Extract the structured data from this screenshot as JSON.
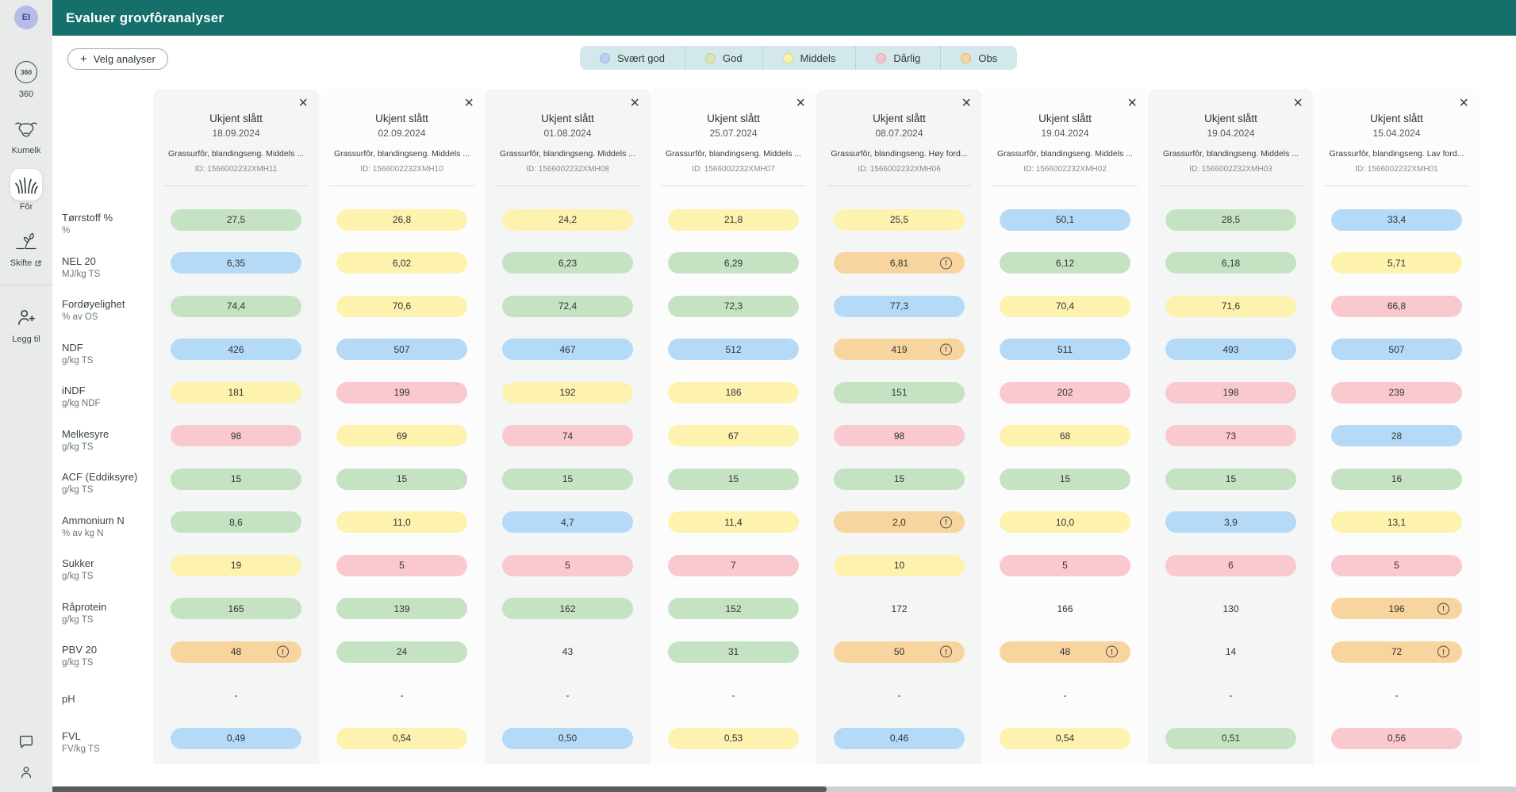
{
  "app": {
    "title": "Evaluer grovfôranalyser"
  },
  "sidebar": {
    "avatar_initials": "EI",
    "items": [
      {
        "label": "360",
        "icon": "360-badge-icon"
      },
      {
        "label": "Kumelk",
        "icon": "cow-icon"
      },
      {
        "label": "Fôr",
        "icon": "grass-icon",
        "active": true
      },
      {
        "label": "Skifte",
        "icon": "sprout-icon",
        "external": true
      },
      {
        "label": "Legg til",
        "icon": "person-plus-icon"
      }
    ]
  },
  "toolbar": {
    "select_analyses_label": "Velg analyser"
  },
  "legend": {
    "items": [
      {
        "label": "Svært god",
        "color": "#bccff0",
        "border": "#9fb6e2"
      },
      {
        "label": "God",
        "color": "#d9e6b2",
        "border": "#c0d28e"
      },
      {
        "label": "Middels",
        "color": "#f9f0ad",
        "border": "#e6d87c"
      },
      {
        "label": "Dårlig",
        "color": "#f6c4cf",
        "border": "#eba4b4"
      },
      {
        "label": "Obs",
        "color": "#f7d3a0",
        "border": "#e8b877"
      }
    ]
  },
  "status_colors": {
    "blue": "#b4daf8",
    "green": "#c5e3c3",
    "yellow": "#fdf3ae",
    "pink": "#fac8cf",
    "orange": "#f8d59e"
  },
  "table": {
    "rows": [
      {
        "name": "Tørrstoff %",
        "unit": "%"
      },
      {
        "name": "NEL 20",
        "unit": "MJ/kg TS"
      },
      {
        "name": "Fordøyelighet",
        "unit": "% av OS"
      },
      {
        "name": "NDF",
        "unit": "g/kg TS"
      },
      {
        "name": "iNDF",
        "unit": "g/kg NDF"
      },
      {
        "name": "Melkesyre",
        "unit": "g/kg TS"
      },
      {
        "name": "ACF (Eddiksyre)",
        "unit": "g/kg TS"
      },
      {
        "name": "Ammonium N",
        "unit": "% av kg N"
      },
      {
        "name": "Sukker",
        "unit": "g/kg TS"
      },
      {
        "name": "Råprotein",
        "unit": "g/kg TS"
      },
      {
        "name": "PBV 20",
        "unit": "g/kg TS"
      },
      {
        "name": "pH",
        "unit": ""
      },
      {
        "name": "FVL",
        "unit": "FV/kg TS"
      }
    ],
    "columns": [
      {
        "title": "Ukjent slått",
        "date": "18.09.2024",
        "description": "Grassurfôr, blandingseng. Middels ...",
        "id": "ID: 1566002232XMH11",
        "values": [
          {
            "v": "27,5",
            "c": "green"
          },
          {
            "v": "6,35",
            "c": "blue"
          },
          {
            "v": "74,4",
            "c": "green"
          },
          {
            "v": "426",
            "c": "blue"
          },
          {
            "v": "181",
            "c": "yellow"
          },
          {
            "v": "98",
            "c": "pink"
          },
          {
            "v": "15",
            "c": "green"
          },
          {
            "v": "8,6",
            "c": "green"
          },
          {
            "v": "19",
            "c": "yellow"
          },
          {
            "v": "165",
            "c": "green"
          },
          {
            "v": "48",
            "c": "orange",
            "warn": true
          },
          {
            "v": "-",
            "c": "none"
          },
          {
            "v": "0,49",
            "c": "blue"
          }
        ]
      },
      {
        "title": "Ukjent slått",
        "date": "02.09.2024",
        "description": "Grassurfôr, blandingseng. Middels ...",
        "id": "ID: 1566002232XMH10",
        "values": [
          {
            "v": "26,8",
            "c": "yellow"
          },
          {
            "v": "6,02",
            "c": "yellow"
          },
          {
            "v": "70,6",
            "c": "yellow"
          },
          {
            "v": "507",
            "c": "blue"
          },
          {
            "v": "199",
            "c": "pink"
          },
          {
            "v": "69",
            "c": "yellow"
          },
          {
            "v": "15",
            "c": "green"
          },
          {
            "v": "11,0",
            "c": "yellow"
          },
          {
            "v": "5",
            "c": "pink"
          },
          {
            "v": "139",
            "c": "green"
          },
          {
            "v": "24",
            "c": "green"
          },
          {
            "v": "-",
            "c": "none"
          },
          {
            "v": "0,54",
            "c": "yellow"
          }
        ]
      },
      {
        "title": "Ukjent slått",
        "date": "01.08.2024",
        "description": "Grassurfôr, blandingseng. Middels ...",
        "id": "ID: 1566002232XMH08",
        "values": [
          {
            "v": "24,2",
            "c": "yellow"
          },
          {
            "v": "6,23",
            "c": "green"
          },
          {
            "v": "72,4",
            "c": "green"
          },
          {
            "v": "467",
            "c": "blue"
          },
          {
            "v": "192",
            "c": "yellow"
          },
          {
            "v": "74",
            "c": "pink"
          },
          {
            "v": "15",
            "c": "green"
          },
          {
            "v": "4,7",
            "c": "blue"
          },
          {
            "v": "5",
            "c": "pink"
          },
          {
            "v": "162",
            "c": "green"
          },
          {
            "v": "43",
            "c": "none"
          },
          {
            "v": "-",
            "c": "none"
          },
          {
            "v": "0,50",
            "c": "blue"
          }
        ]
      },
      {
        "title": "Ukjent slått",
        "date": "25.07.2024",
        "description": "Grassurfôr, blandingseng. Middels ...",
        "id": "ID: 1566002232XMH07",
        "values": [
          {
            "v": "21,8",
            "c": "yellow"
          },
          {
            "v": "6,29",
            "c": "green"
          },
          {
            "v": "72,3",
            "c": "green"
          },
          {
            "v": "512",
            "c": "blue"
          },
          {
            "v": "186",
            "c": "yellow"
          },
          {
            "v": "67",
            "c": "yellow"
          },
          {
            "v": "15",
            "c": "green"
          },
          {
            "v": "11,4",
            "c": "yellow"
          },
          {
            "v": "7",
            "c": "pink"
          },
          {
            "v": "152",
            "c": "green"
          },
          {
            "v": "31",
            "c": "green"
          },
          {
            "v": "-",
            "c": "none"
          },
          {
            "v": "0,53",
            "c": "yellow"
          }
        ]
      },
      {
        "title": "Ukjent slått",
        "date": "08.07.2024",
        "description": "Grassurfôr, blandingseng. Høy ford...",
        "id": "ID: 1566002232XMH06",
        "values": [
          {
            "v": "25,5",
            "c": "yellow"
          },
          {
            "v": "6,81",
            "c": "orange",
            "warn": true
          },
          {
            "v": "77,3",
            "c": "blue"
          },
          {
            "v": "419",
            "c": "orange",
            "warn": true
          },
          {
            "v": "151",
            "c": "green"
          },
          {
            "v": "98",
            "c": "pink"
          },
          {
            "v": "15",
            "c": "green"
          },
          {
            "v": "2,0",
            "c": "orange",
            "warn": true
          },
          {
            "v": "10",
            "c": "yellow"
          },
          {
            "v": "172",
            "c": "none"
          },
          {
            "v": "50",
            "c": "orange",
            "warn": true
          },
          {
            "v": "-",
            "c": "none"
          },
          {
            "v": "0,46",
            "c": "blue"
          }
        ]
      },
      {
        "title": "Ukjent slått",
        "date": "19.04.2024",
        "description": "Grassurfôr, blandingseng. Middels ...",
        "id": "ID: 1566002232XMH02",
        "values": [
          {
            "v": "50,1",
            "c": "blue"
          },
          {
            "v": "6,12",
            "c": "green"
          },
          {
            "v": "70,4",
            "c": "yellow"
          },
          {
            "v": "511",
            "c": "blue"
          },
          {
            "v": "202",
            "c": "pink"
          },
          {
            "v": "68",
            "c": "yellow"
          },
          {
            "v": "15",
            "c": "green"
          },
          {
            "v": "10,0",
            "c": "yellow"
          },
          {
            "v": "5",
            "c": "pink"
          },
          {
            "v": "166",
            "c": "none"
          },
          {
            "v": "48",
            "c": "orange",
            "warn": true
          },
          {
            "v": "-",
            "c": "none"
          },
          {
            "v": "0,54",
            "c": "yellow"
          }
        ]
      },
      {
        "title": "Ukjent slått",
        "date": "19.04.2024",
        "description": "Grassurfôr, blandingseng. Middels ...",
        "id": "ID: 1566002232XMH03",
        "values": [
          {
            "v": "28,5",
            "c": "green"
          },
          {
            "v": "6,18",
            "c": "green"
          },
          {
            "v": "71,6",
            "c": "yellow"
          },
          {
            "v": "493",
            "c": "blue"
          },
          {
            "v": "198",
            "c": "pink"
          },
          {
            "v": "73",
            "c": "pink"
          },
          {
            "v": "15",
            "c": "green"
          },
          {
            "v": "3,9",
            "c": "blue"
          },
          {
            "v": "6",
            "c": "pink"
          },
          {
            "v": "130",
            "c": "none"
          },
          {
            "v": "14",
            "c": "none"
          },
          {
            "v": "-",
            "c": "none"
          },
          {
            "v": "0,51",
            "c": "green"
          }
        ]
      },
      {
        "title": "Ukjent slått",
        "date": "15.04.2024",
        "description": "Grassurfôr, blandingseng. Lav ford...",
        "id": "ID: 1566002232XMH01",
        "values": [
          {
            "v": "33,4",
            "c": "blue"
          },
          {
            "v": "5,71",
            "c": "yellow"
          },
          {
            "v": "66,8",
            "c": "pink"
          },
          {
            "v": "507",
            "c": "blue"
          },
          {
            "v": "239",
            "c": "pink"
          },
          {
            "v": "28",
            "c": "blue"
          },
          {
            "v": "16",
            "c": "green"
          },
          {
            "v": "13,1",
            "c": "yellow"
          },
          {
            "v": "5",
            "c": "pink"
          },
          {
            "v": "196",
            "c": "orange",
            "warn": true
          },
          {
            "v": "72",
            "c": "orange",
            "warn": true
          },
          {
            "v": "-",
            "c": "none"
          },
          {
            "v": "0,56",
            "c": "pink"
          }
        ]
      }
    ]
  }
}
